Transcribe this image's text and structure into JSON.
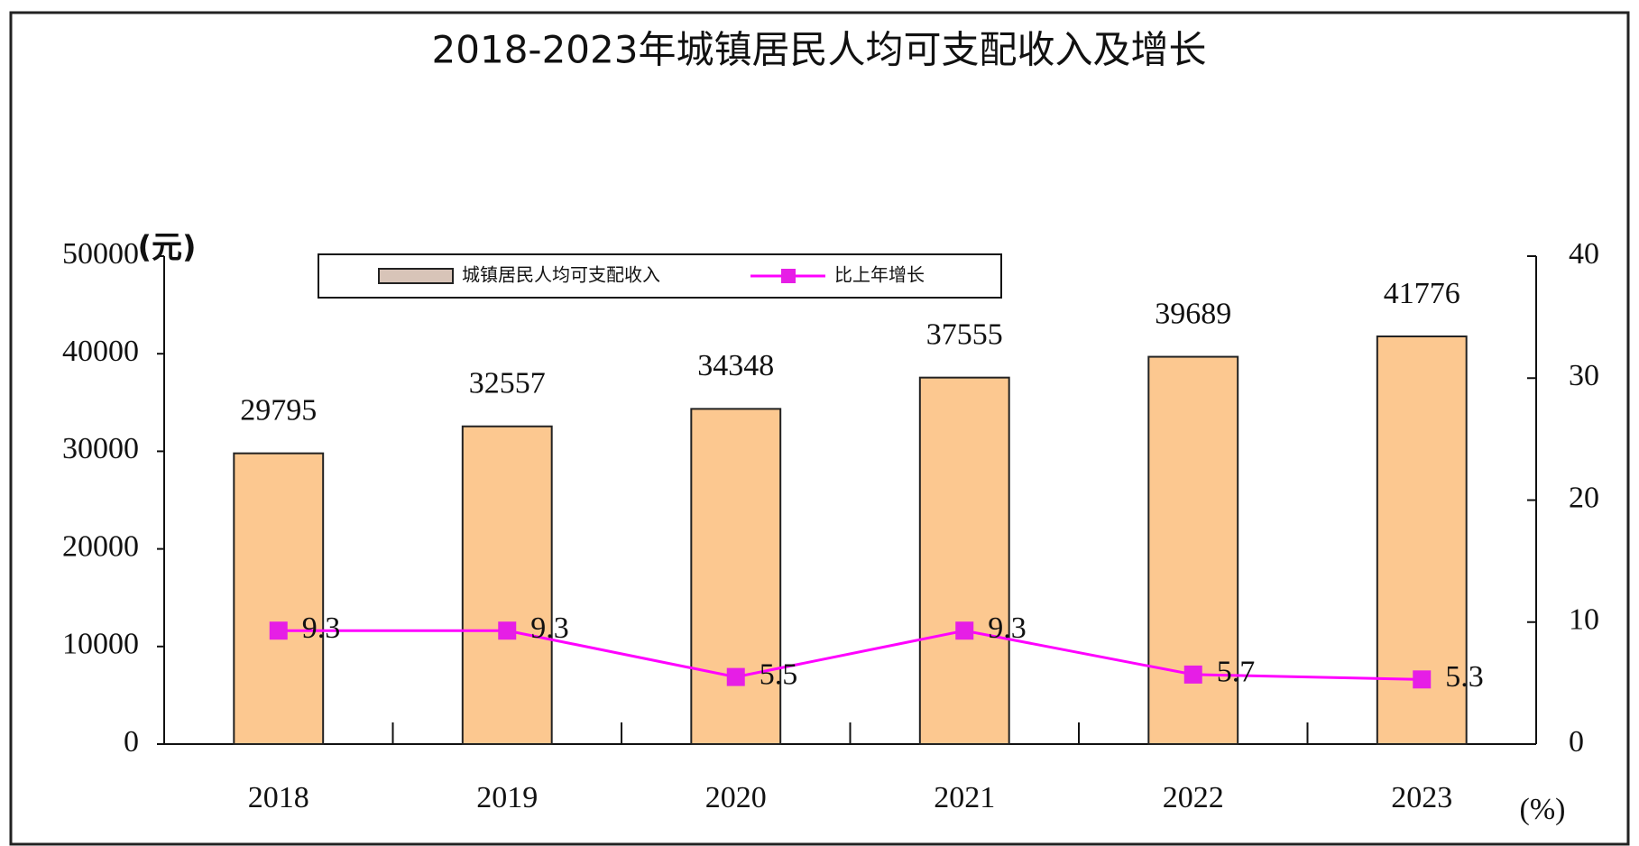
{
  "chart_data": {
    "type": "bar-line",
    "title": "2018-2023年城镇居民人均可支配收入及增长",
    "y_axis_label": "(元)",
    "y2_axis_label": "(%)",
    "categories": [
      "2018",
      "2019",
      "2020",
      "2021",
      "2022",
      "2023"
    ],
    "series": [
      {
        "name": "城镇居民人均可支配收入",
        "type": "bar",
        "color": "#fcc890",
        "values": [
          29795,
          32557,
          34348,
          37555,
          39689,
          41776
        ]
      },
      {
        "name": "比上年增长",
        "type": "line",
        "color": "#ff00ff",
        "axis": "y2",
        "values": [
          9.3,
          9.3,
          5.5,
          9.3,
          5.7,
          5.3
        ]
      }
    ],
    "ylim": [
      0,
      50000
    ],
    "yticks": [
      0,
      10000,
      20000,
      30000,
      40000,
      50000
    ],
    "y2lim": [
      0,
      40
    ],
    "y2ticks": [
      0,
      10,
      20,
      30,
      40
    ],
    "legend": "top"
  }
}
